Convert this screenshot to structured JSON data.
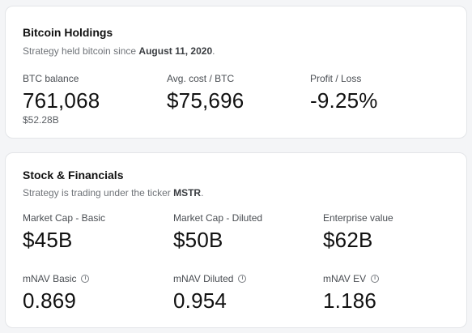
{
  "bitcoin_holdings": {
    "title": "Bitcoin Holdings",
    "subtitle_prefix": "Strategy held bitcoin since ",
    "subtitle_date": "August 11, 2020",
    "subtitle_suffix": ".",
    "metrics": [
      {
        "label": "BTC balance",
        "value": "761,068",
        "sub": "$52.28B"
      },
      {
        "label": "Avg. cost / BTC",
        "value": "$75,696"
      },
      {
        "label": "Profit / Loss",
        "value": "-9.25%"
      }
    ]
  },
  "stock_financials": {
    "title": "Stock & Financials",
    "subtitle_prefix": "Strategy is trading under the ticker ",
    "subtitle_ticker": "MSTR",
    "subtitle_suffix": ".",
    "metrics": [
      {
        "label": "Market Cap - Basic",
        "value": "$45B"
      },
      {
        "label": "Market Cap - Diluted",
        "value": "$50B"
      },
      {
        "label": "Enterprise value",
        "value": "$62B"
      },
      {
        "label": "mNAV Basic",
        "value": "0.869",
        "info_icon": "info-icon"
      },
      {
        "label": "mNAV Diluted",
        "value": "0.954",
        "info_icon": "info-icon"
      },
      {
        "label": "mNAV EV",
        "value": "1.186",
        "info_icon": "info-icon"
      }
    ]
  },
  "info_glyph": "i"
}
